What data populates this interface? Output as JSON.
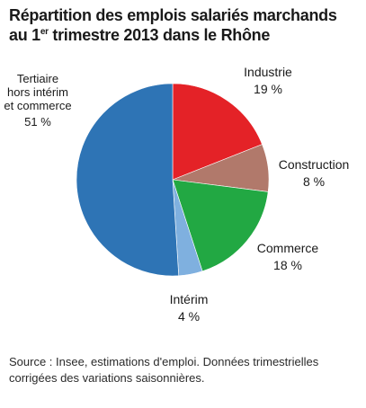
{
  "title_line1": "Répartition des emplois salariés marchands",
  "title_line2_pre": "au 1",
  "title_line2_sup": "er",
  "title_line2_post": " trimestre 2013 dans le Rhône",
  "source": "Source : Insee, estimations d'emploi. Données trimestrielles corrigées des variations saisonnières.",
  "chart_data": {
    "type": "pie",
    "title": "Répartition des emplois salariés marchands au 1er trimestre 2013 dans le Rhône",
    "unit": "%",
    "slices": [
      {
        "label": "Industrie",
        "value": 19,
        "display": "19 %",
        "color": "#e42227"
      },
      {
        "label": "Construction",
        "value": 8,
        "display": "8 %",
        "color": "#b1796b"
      },
      {
        "label": "Commerce",
        "value": 18,
        "display": "18 %",
        "color": "#22a843"
      },
      {
        "label": "Intérim",
        "value": 4,
        "display": "4 %",
        "color": "#7fb0df"
      },
      {
        "label": "Tertiaire hors intérim et commerce",
        "value": 51,
        "display": "51 %",
        "color": "#2e74b5"
      }
    ],
    "labels": {
      "tertiaire_line1": "Tertiaire",
      "tertiaire_line2": "hors intérim",
      "tertiaire_line3": "et commerce"
    }
  }
}
